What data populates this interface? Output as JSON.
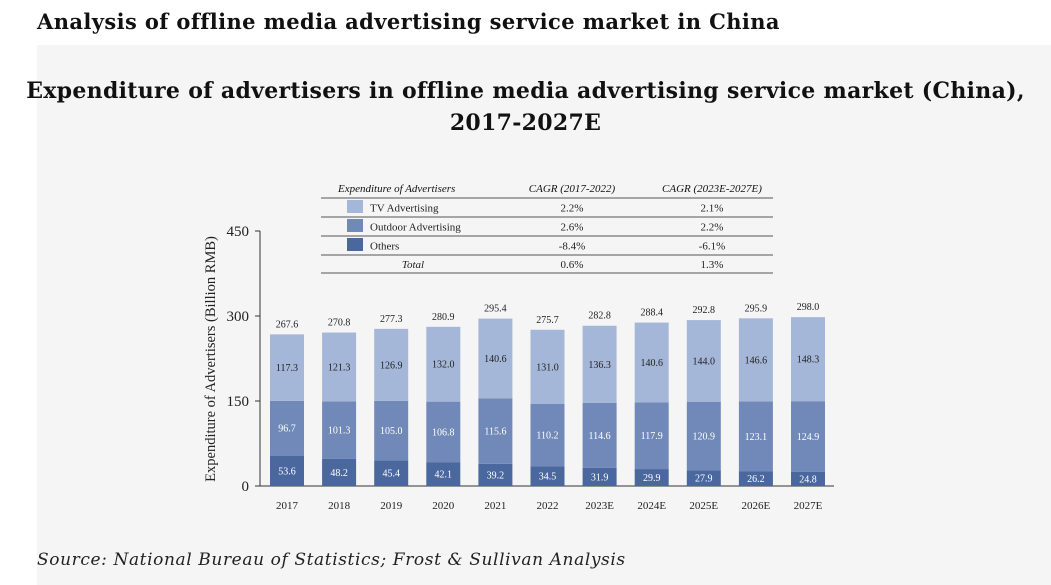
{
  "page_heading": "Analysis of offline media advertising service market in China",
  "source_note": "Source: National Bureau of Statistics; Frost & Sullivan Analysis",
  "colors": {
    "tv": "#a5b7d8",
    "outdoor": "#7089b8",
    "others": "#4a679e",
    "panel": "#f5f5f5",
    "axis": "#333333"
  },
  "legend_table": {
    "headers": [
      "Expenditure of Advertisers",
      "CAGR (2017-2022)",
      "CAGR (2023E-2027E)"
    ],
    "rows": [
      {
        "label": "TV Advertising",
        "cagr_1": "2.2%",
        "cagr_2": "2.1%",
        "color_key": "tv"
      },
      {
        "label": "Outdoor Advertising",
        "cagr_1": "2.6%",
        "cagr_2": "2.2%",
        "color_key": "outdoor"
      },
      {
        "label": "Others",
        "cagr_1": "-8.4%",
        "cagr_2": "-6.1%",
        "color_key": "others"
      }
    ],
    "total": {
      "label": "Total",
      "cagr_1": "0.6%",
      "cagr_2": "1.3%"
    }
  },
  "chart_data": {
    "type": "bar",
    "stacked": true,
    "title": "Expenditure of advertisers in offline media advertising service market (China), 2017-2027E",
    "title_lines": [
      "Expenditure of advertisers in offline media advertising service market (China),",
      "2017-2027E"
    ],
    "xlabel": "",
    "ylabel": "Expenditure of Advertisers (Billion RMB)",
    "ylim": [
      0,
      450
    ],
    "yticks": [
      0,
      150,
      300,
      450
    ],
    "categories": [
      "2017",
      "2018",
      "2019",
      "2020",
      "2021",
      "2022",
      "2023E",
      "2024E",
      "2025E",
      "2026E",
      "2027E"
    ],
    "series": [
      {
        "name": "Others",
        "color_key": "others",
        "values": [
          53.6,
          48.2,
          45.4,
          42.1,
          39.2,
          34.5,
          31.9,
          29.9,
          27.9,
          26.2,
          24.8
        ]
      },
      {
        "name": "Outdoor Advertising",
        "color_key": "outdoor",
        "values": [
          96.7,
          101.3,
          105.0,
          106.8,
          115.6,
          110.2,
          114.6,
          117.9,
          120.9,
          123.1,
          124.9
        ]
      },
      {
        "name": "TV Advertising",
        "color_key": "tv",
        "values": [
          117.3,
          121.3,
          126.9,
          132.0,
          140.6,
          131.0,
          136.3,
          140.6,
          144.0,
          146.6,
          148.3
        ]
      }
    ],
    "totals": [
      267.6,
      270.8,
      277.3,
      280.9,
      295.4,
      275.7,
      282.8,
      288.4,
      292.8,
      295.9,
      298.0
    ]
  }
}
